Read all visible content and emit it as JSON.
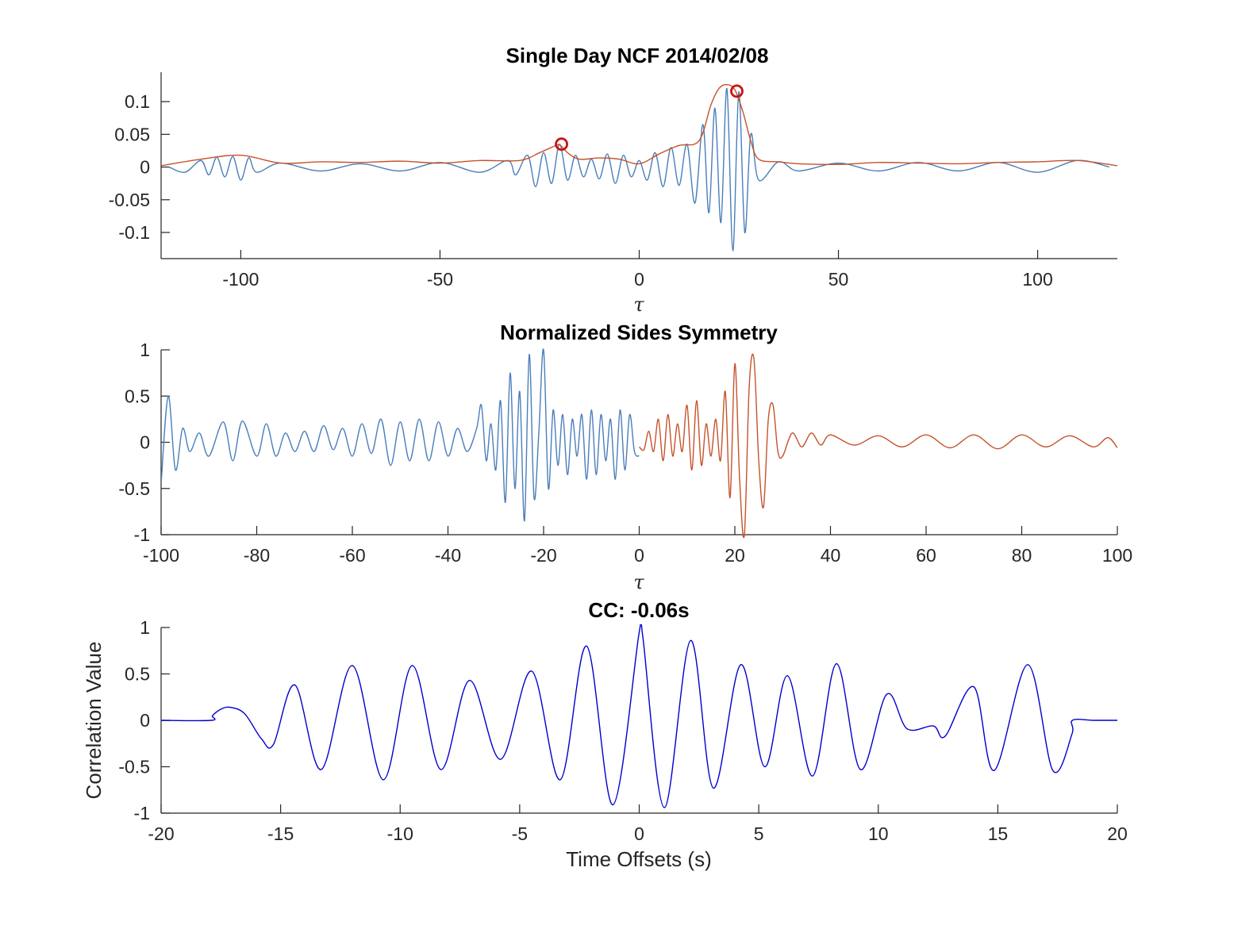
{
  "chart_data": [
    {
      "type": "line",
      "title": "Single Day NCF 2014/02/08",
      "xlabel": "τ",
      "ylabel": "",
      "xlim": [
        -120,
        120
      ],
      "ylim": [
        -0.14,
        0.145
      ],
      "xticks": [
        -100,
        -50,
        0,
        50,
        100
      ],
      "xticklabels": [
        "-100",
        "-50",
        "0",
        "50",
        "100"
      ],
      "yticks": [
        -0.1,
        -0.05,
        0,
        0.05,
        0.1
      ],
      "yticklabels": [
        "-0.1",
        "-0.05",
        "0",
        "0.05",
        "0.1"
      ],
      "grid": false,
      "colors": {
        "signal": "#4a7ebb",
        "envelope": "#c5532b",
        "marker": "#cc1111"
      },
      "series": [
        {
          "role": "signal",
          "x": [
            -118,
            -114,
            -110,
            -108,
            -106,
            -104,
            -102,
            -100,
            -98,
            -96,
            -90,
            -80,
            -70,
            -60,
            -50,
            -40,
            -33,
            -31,
            -28,
            -26,
            -24,
            -22,
            -20,
            -18,
            -16,
            -14,
            -12,
            -10,
            -8,
            -6,
            -4,
            -2,
            0,
            2,
            4,
            6,
            8,
            10,
            12,
            14,
            16,
            17.5,
            19,
            20.5,
            22,
            23.5,
            25,
            26.5,
            28,
            30,
            35,
            40,
            50,
            60,
            70,
            80,
            90,
            100,
            110,
            118
          ],
          "y": [
            0.0,
            -0.008,
            0.01,
            -0.012,
            0.015,
            -0.015,
            0.016,
            -0.02,
            0.014,
            -0.008,
            0.006,
            -0.006,
            0.005,
            -0.006,
            0.007,
            -0.008,
            0.01,
            -0.012,
            0.018,
            -0.03,
            0.022,
            -0.025,
            0.035,
            -0.02,
            0.018,
            -0.015,
            0.012,
            -0.018,
            0.02,
            -0.025,
            0.018,
            -0.015,
            0.01,
            -0.02,
            0.022,
            -0.03,
            0.03,
            -0.028,
            0.035,
            -0.055,
            0.065,
            -0.07,
            0.09,
            -0.085,
            0.12,
            -0.128,
            0.115,
            -0.1,
            0.05,
            -0.02,
            0.008,
            -0.006,
            0.006,
            -0.006,
            0.007,
            -0.006,
            0.007,
            -0.008,
            0.01,
            0.0
          ]
        },
        {
          "role": "envelope",
          "x": [
            -120,
            -110,
            -100,
            -90,
            -80,
            -70,
            -60,
            -50,
            -40,
            -30,
            -25,
            -22,
            -20,
            -18,
            -15,
            -10,
            -5,
            0,
            5,
            10,
            15,
            18,
            20,
            22,
            24,
            26,
            28,
            30,
            35,
            40,
            50,
            60,
            70,
            80,
            90,
            100,
            110,
            120
          ],
          "y": [
            0.002,
            0.012,
            0.018,
            0.006,
            0.008,
            0.007,
            0.009,
            0.006,
            0.01,
            0.01,
            0.022,
            0.03,
            0.034,
            0.022,
            0.012,
            0.014,
            0.012,
            0.005,
            0.02,
            0.033,
            0.04,
            0.095,
            0.12,
            0.126,
            0.118,
            0.085,
            0.04,
            0.012,
            0.008,
            0.005,
            0.004,
            0.007,
            0.006,
            0.005,
            0.007,
            0.008,
            0.01,
            0.002
          ]
        }
      ],
      "markers": [
        {
          "x": -19.5,
          "y": 0.035
        },
        {
          "x": 24.5,
          "y": 0.116
        }
      ]
    },
    {
      "type": "line",
      "title": "Normalized Sides Symmetry",
      "xlabel": "τ",
      "ylabel": "",
      "xlim": [
        -100,
        100
      ],
      "ylim": [
        -1,
        1
      ],
      "xticks": [
        -100,
        -80,
        -60,
        -40,
        -20,
        0,
        20,
        40,
        60,
        80,
        100
      ],
      "xticklabels": [
        "-100",
        "-80",
        "-60",
        "-40",
        "-20",
        "0",
        "20",
        "40",
        "60",
        "80",
        "100"
      ],
      "yticks": [
        -1,
        -0.5,
        0,
        0.5,
        1
      ],
      "yticklabels": [
        "-1",
        "-0.5",
        "0",
        "0.5",
        "1"
      ],
      "grid": false,
      "colors": {
        "negative_side": "#4a7ebb",
        "positive_side": "#c5532b"
      },
      "series": [
        {
          "role": "negative_side",
          "x": [
            -100,
            -98.5,
            -97,
            -95.5,
            -94,
            -92,
            -90,
            -87,
            -85,
            -83,
            -80,
            -78,
            -76,
            -74,
            -72,
            -70,
            -68,
            -66,
            -64,
            -62,
            -60,
            -58,
            -56,
            -54,
            -52,
            -50,
            -48,
            -46,
            -44,
            -42,
            -40,
            -38,
            -36,
            -34,
            -33,
            -32,
            -31,
            -30,
            -29,
            -28,
            -27,
            -26,
            -25,
            -24,
            -23,
            -22,
            -21,
            -20,
            -19,
            -18,
            -17,
            -16,
            -15,
            -14,
            -13,
            -12,
            -11,
            -10,
            -9,
            -8,
            -7,
            -6,
            -5,
            -4,
            -3,
            -2,
            -1,
            0
          ],
          "y": [
            -0.45,
            0.5,
            -0.3,
            0.15,
            -0.1,
            0.1,
            -0.15,
            0.22,
            -0.2,
            0.23,
            -0.15,
            0.2,
            -0.15,
            0.1,
            -0.1,
            0.12,
            -0.1,
            0.18,
            -0.08,
            0.15,
            -0.15,
            0.2,
            -0.12,
            0.25,
            -0.25,
            0.22,
            -0.2,
            0.25,
            -0.2,
            0.22,
            -0.15,
            0.15,
            -0.1,
            0.15,
            0.4,
            -0.2,
            0.2,
            -0.3,
            0.45,
            -0.65,
            0.75,
            -0.5,
            0.55,
            -0.85,
            0.95,
            -0.6,
            0.1,
            1.0,
            -0.5,
            0.35,
            -0.25,
            0.3,
            -0.35,
            0.25,
            -0.15,
            0.3,
            -0.4,
            0.35,
            -0.35,
            0.3,
            -0.2,
            0.25,
            -0.4,
            0.35,
            -0.3,
            0.3,
            -0.1,
            -0.15
          ]
        },
        {
          "role": "positive_side",
          "x": [
            0,
            1,
            2,
            3,
            4,
            5,
            6,
            7,
            8,
            9,
            10,
            11,
            12,
            13,
            14,
            15,
            16,
            17,
            18,
            19,
            20,
            21,
            22,
            23,
            24,
            25,
            26,
            27,
            28,
            29,
            30,
            32,
            34,
            36,
            38,
            40,
            45,
            50,
            55,
            60,
            65,
            70,
            75,
            80,
            85,
            90,
            95,
            98,
            100
          ],
          "y": [
            -0.05,
            -0.08,
            0.12,
            -0.1,
            0.25,
            -0.2,
            0.3,
            -0.15,
            0.2,
            -0.1,
            0.4,
            -0.3,
            0.45,
            -0.25,
            0.2,
            -0.15,
            0.25,
            -0.2,
            0.55,
            -0.6,
            0.85,
            -0.4,
            -1.0,
            0.6,
            0.9,
            -0.2,
            -0.7,
            0.25,
            0.4,
            -0.1,
            -0.15,
            0.1,
            -0.05,
            0.1,
            -0.03,
            0.08,
            -0.03,
            0.07,
            -0.05,
            0.08,
            -0.06,
            0.08,
            -0.07,
            0.08,
            -0.05,
            0.07,
            -0.05,
            0.05,
            -0.06
          ]
        }
      ]
    },
    {
      "type": "line",
      "title": "CC: -0.06s",
      "xlabel": "Time Offsets (s)",
      "ylabel": "Correlation Value",
      "xlim": [
        -20,
        20
      ],
      "ylim": [
        -1,
        1
      ],
      "xticks": [
        -20,
        -15,
        -10,
        -5,
        0,
        5,
        10,
        15,
        20
      ],
      "xticklabels": [
        "-20",
        "-15",
        "-10",
        "-5",
        "0",
        "5",
        "10",
        "15",
        "20"
      ],
      "yticks": [
        -1,
        -0.5,
        0,
        0.5,
        1
      ],
      "yticklabels": [
        "-1",
        "-0.5",
        "0",
        "0.5",
        "1"
      ],
      "grid": false,
      "colors": {
        "line": "#0000cc"
      },
      "series": [
        {
          "role": "correlation",
          "x": [
            -20,
            -17.9,
            -17.85,
            -17.5,
            -17.1,
            -16.5,
            -15.8,
            -15.3,
            -14.4,
            -13.3,
            -12,
            -10.7,
            -9.5,
            -8.3,
            -7.1,
            -5.8,
            -4.5,
            -3.3,
            -2.2,
            -1.1,
            0,
            0.15,
            1.05,
            2.15,
            3.1,
            4.25,
            5.25,
            6.2,
            7.25,
            8.25,
            9.25,
            10.35,
            11.2,
            12.3,
            12.8,
            14,
            14.85,
            16.25,
            17.3,
            18.1,
            18.12,
            19.0,
            20
          ],
          "y": [
            0,
            0,
            0.05,
            0.12,
            0.14,
            0.07,
            -0.2,
            -0.26,
            0.38,
            -0.53,
            0.59,
            -0.64,
            0.59,
            -0.53,
            0.43,
            -0.42,
            0.53,
            -0.64,
            0.8,
            -0.91,
            0.95,
            0.9,
            -0.94,
            0.86,
            -0.73,
            0.6,
            -0.5,
            0.48,
            -0.6,
            0.61,
            -0.53,
            0.28,
            -0.09,
            -0.06,
            -0.17,
            0.36,
            -0.54,
            0.6,
            -0.54,
            -0.15,
            0.0,
            0.0,
            0
          ]
        }
      ]
    }
  ]
}
